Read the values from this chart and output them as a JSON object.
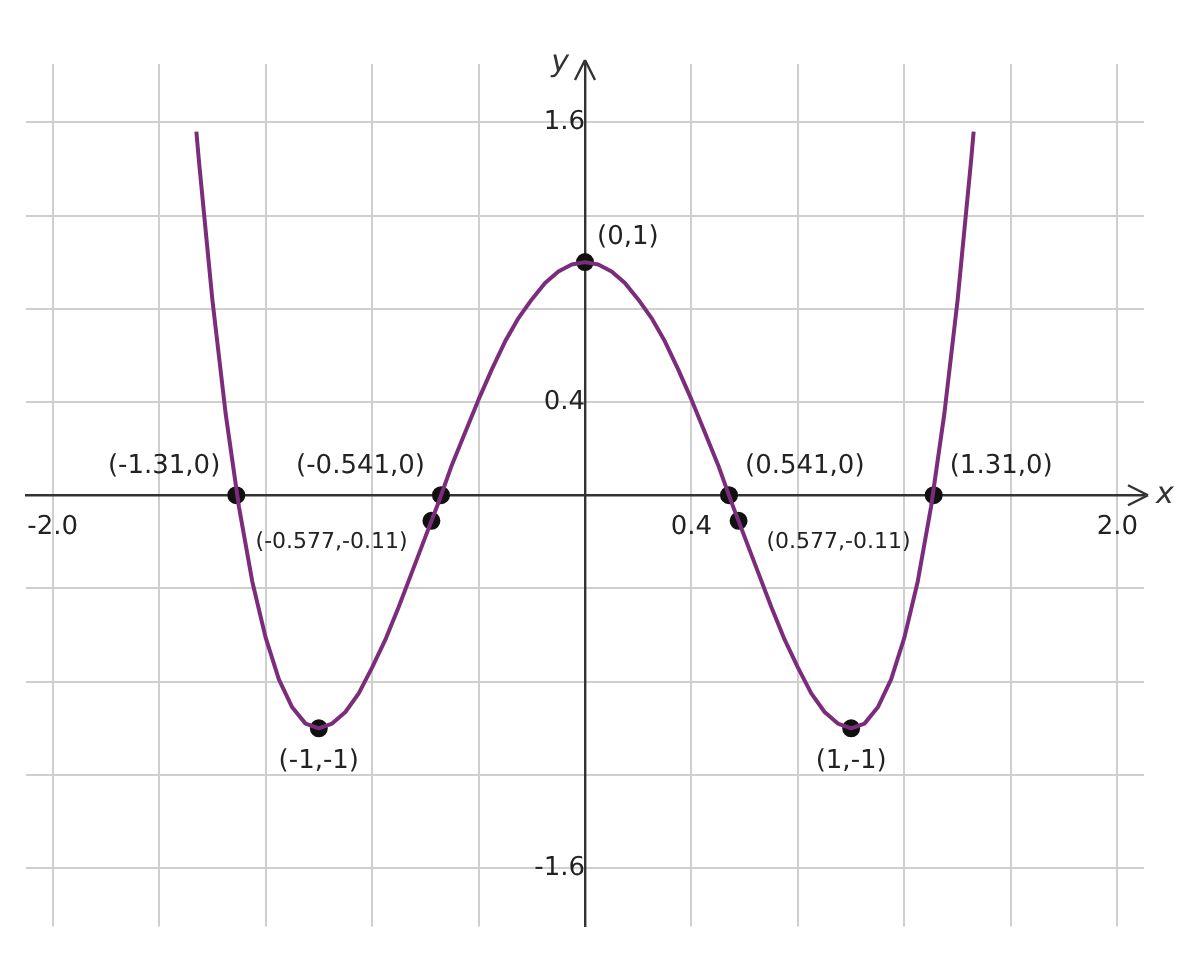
{
  "chart_data": {
    "type": "line",
    "xlabel": "x",
    "ylabel": "y",
    "xlim": [
      -2.1,
      2.1
    ],
    "ylim": [
      -1.85,
      1.85
    ],
    "xticks": [
      {
        "value": -2.0,
        "label": "-2.0"
      },
      {
        "value": -1.6,
        "label": null
      },
      {
        "value": -1.2,
        "label": null
      },
      {
        "value": -0.8,
        "label": null
      },
      {
        "value": -0.4,
        "label": null
      },
      {
        "value": 0,
        "label": null
      },
      {
        "value": 0.4,
        "label": "0.4"
      },
      {
        "value": 0.8,
        "label": null
      },
      {
        "value": 1.2,
        "label": null
      },
      {
        "value": 1.6,
        "label": null
      },
      {
        "value": 2.0,
        "label": "2.0"
      }
    ],
    "yticks": [
      {
        "value": -1.6,
        "label": "-1.6"
      },
      {
        "value": -1.2,
        "label": null
      },
      {
        "value": -0.8,
        "label": null
      },
      {
        "value": -0.4,
        "label": null
      },
      {
        "value": 0,
        "label": null
      },
      {
        "value": 0.4,
        "label": "0.4"
      },
      {
        "value": 0.8,
        "label": null
      },
      {
        "value": 1.2,
        "label": null
      },
      {
        "value": 1.6,
        "label": "1.6"
      }
    ],
    "grid": true,
    "legend": false,
    "series": [
      {
        "type": "line",
        "color": "#7b2d7b",
        "marker": "none",
        "x": [
          -1.46,
          -1.45,
          -1.4,
          -1.35,
          -1.3,
          -1.25,
          -1.2,
          -1.15,
          -1.1,
          -1.05,
          -1.0,
          -0.95,
          -0.9,
          -0.85,
          -0.8,
          -0.75,
          -0.7,
          -0.65,
          -0.6,
          -0.55,
          -0.5,
          -0.45,
          -0.4,
          -0.35,
          -0.3,
          -0.25,
          -0.2,
          -0.15,
          -0.1,
          -0.05,
          0,
          0.05,
          0.1,
          0.15,
          0.2,
          0.25,
          0.3,
          0.35,
          0.4,
          0.45,
          0.5,
          0.55,
          0.6,
          0.65,
          0.7,
          0.75,
          0.8,
          0.85,
          0.9,
          0.95,
          1.0,
          1.05,
          1.1,
          1.15,
          1.2,
          1.25,
          1.3,
          1.35,
          1.4,
          1.45,
          1.46
        ],
        "values": [
          1.56,
          1.43,
          0.84,
          0.35,
          -0.05,
          -0.37,
          -0.61,
          -0.79,
          -0.91,
          -0.98,
          -1,
          -0.98,
          -0.93,
          -0.85,
          -0.74,
          -0.62,
          -0.48,
          -0.33,
          -0.18,
          -0.03,
          0.13,
          0.27,
          0.41,
          0.54,
          0.66,
          0.76,
          0.84,
          0.91,
          0.96,
          0.99,
          1,
          0.99,
          0.96,
          0.91,
          0.84,
          0.76,
          0.66,
          0.54,
          0.41,
          0.27,
          0.13,
          -0.03,
          -0.18,
          -0.33,
          -0.48,
          -0.62,
          -0.74,
          -0.85,
          -0.93,
          -0.98,
          -1,
          -0.98,
          -0.91,
          -0.79,
          -0.61,
          -0.37,
          -0.05,
          0.35,
          0.84,
          1.43,
          1.56
        ]
      },
      {
        "type": "scatter",
        "color": "#111111",
        "marker": "circle",
        "x": [
          -1.31,
          -0.541,
          0,
          0.541,
          1.31,
          -0.577,
          0.577,
          -1,
          1
        ],
        "values": [
          0,
          0,
          1,
          0,
          0,
          -0.11,
          -0.11,
          -1,
          -1
        ]
      }
    ],
    "annotations": [
      {
        "text": "(-1.31,0)",
        "x": -1.31,
        "y": 0
      },
      {
        "text": "(-0.541,0)",
        "x": -0.541,
        "y": 0
      },
      {
        "text": "(0,1)",
        "x": 0,
        "y": 1
      },
      {
        "text": "(0.541,0)",
        "x": 0.541,
        "y": 0
      },
      {
        "text": "(1.31,0)",
        "x": 1.31,
        "y": 0
      },
      {
        "text": "(-0.577,-0.11)",
        "x": -0.577,
        "y": -0.11
      },
      {
        "text": "(0.577,-0.11)",
        "x": 0.577,
        "y": -0.11
      },
      {
        "text": "(-1,-1)",
        "x": -1,
        "y": -1
      },
      {
        "text": "(1,-1)",
        "x": 1,
        "y": -1
      }
    ]
  }
}
